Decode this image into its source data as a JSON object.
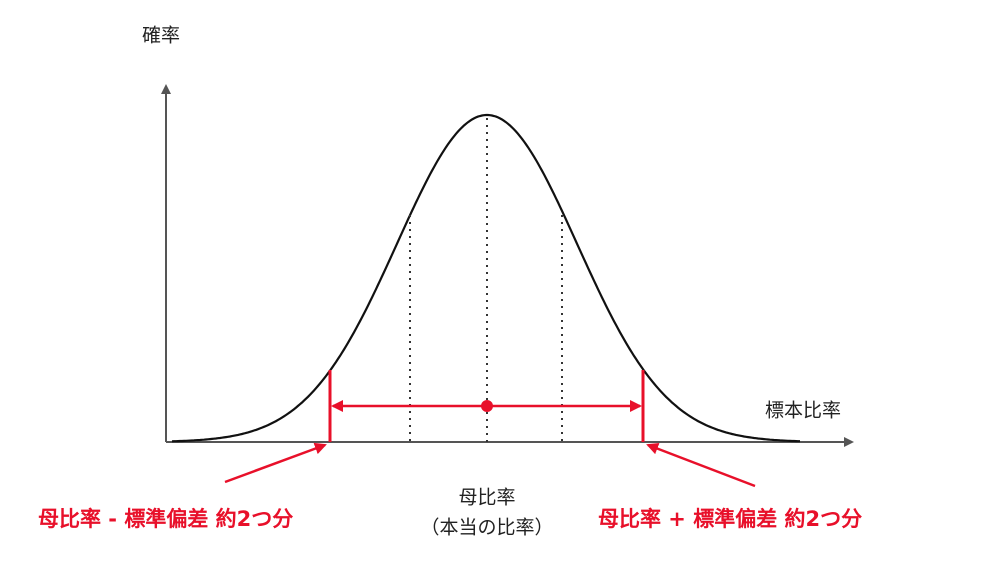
{
  "axes": {
    "y_label": "確率",
    "x_label": "標本比率"
  },
  "center": {
    "label": "母比率",
    "sublabel": "（本当の比率）"
  },
  "bounds": {
    "lower": "母比率 - 標準偏差 約2つ分",
    "upper": "母比率 + 標準偏差 約2つ分"
  }
}
